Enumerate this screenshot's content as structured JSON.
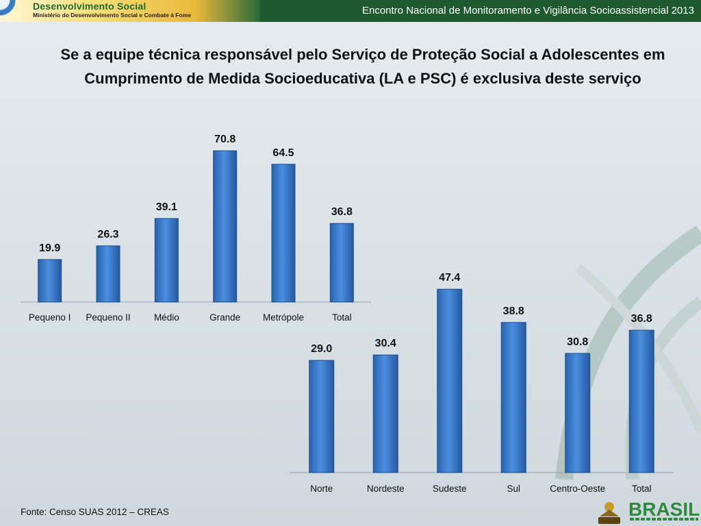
{
  "header": {
    "brand_title": "Desenvolvimento Social",
    "brand_subtitle": "Ministério do Desenvolvimento Social e Combate à Fome",
    "event_title": "Encontro Nacional de Monitoramento e Vigilância Socioassistencial 2013"
  },
  "title": "Se a equipe técnica responsável pelo Serviço de Proteção Social a Adolescentes em Cumprimento de Medida Socioeducativa (LA e PSC) é exclusiva deste serviço",
  "source": "Fonte: Censo SUAS 2012 – CREAS",
  "colors": {
    "bar": "#3f7fcf",
    "bar_dark": "#1c4f8a",
    "header": "#1f5a2e"
  },
  "chart_data": [
    {
      "type": "bar",
      "title": "Se a equipe técnica responsável pelo Serviço de Proteção Social a Adolescentes em Cumprimento de Medida Socioeducativa (LA e PSC) é exclusiva deste serviço",
      "categories": [
        "Pequeno I",
        "Pequeno II",
        "Médio",
        "Grande",
        "Metrópole",
        "Total"
      ],
      "values": [
        19.9,
        26.3,
        39.1,
        70.8,
        64.5,
        36.8
      ],
      "xlabel": "",
      "ylabel": "",
      "ylim": [
        0,
        80
      ],
      "grid": false
    },
    {
      "type": "bar",
      "categories": [
        "Norte",
        "Nordeste",
        "Sudeste",
        "Sul",
        "Centro-Oeste",
        "Total"
      ],
      "values": [
        29.0,
        30.4,
        47.4,
        38.8,
        30.8,
        36.8
      ],
      "xlabel": "",
      "ylabel": "",
      "ylim": [
        0,
        60
      ],
      "grid": false
    }
  ]
}
